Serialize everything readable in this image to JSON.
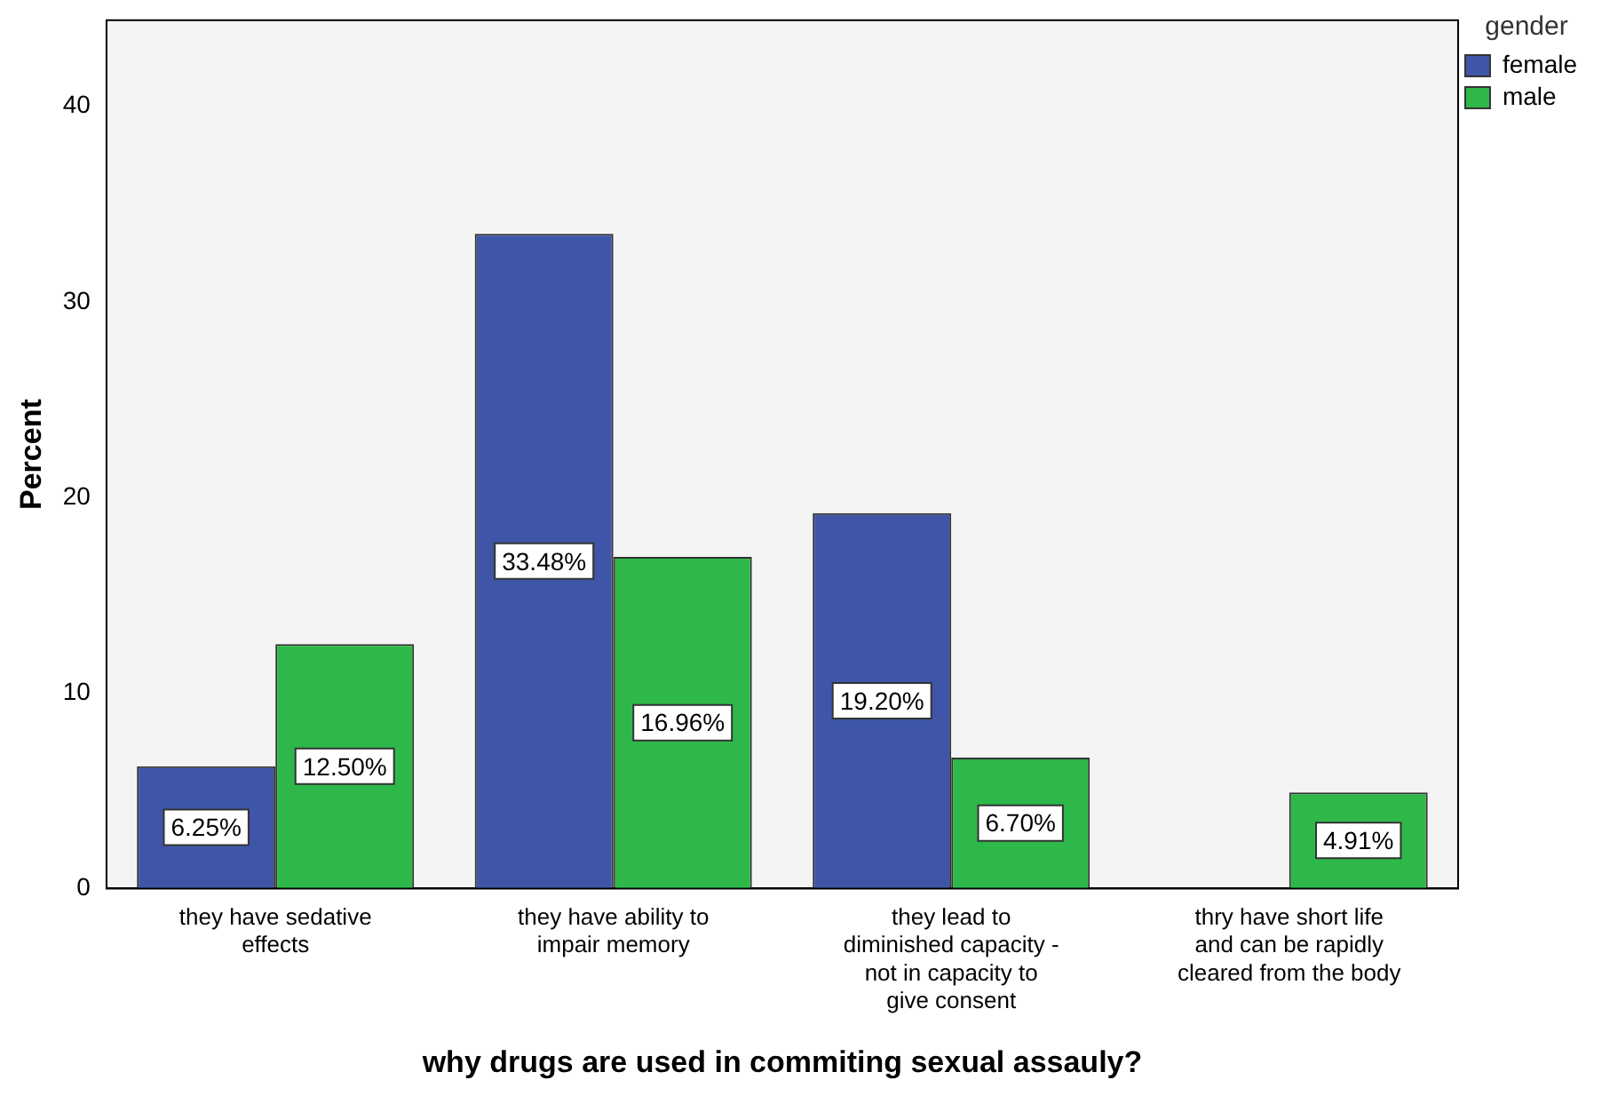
{
  "chart_data": {
    "type": "bar",
    "xlabel": "why drugs are used in commiting sexual assauly?",
    "ylabel": "Percent",
    "legend_title": "gender",
    "legend": "top right",
    "categories": [
      "they have sedative effects",
      "they have ability to impair memory",
      "they lead to diminished capacity - not in capacity to give consent",
      "thry have short life and can be rapidly cleared from the body"
    ],
    "series": [
      {
        "name": "female",
        "color": "#3f56a8",
        "values": [
          6.25,
          33.48,
          19.2,
          null
        ],
        "value_labels": [
          "6.25%",
          "33.48%",
          "19.20%",
          null
        ]
      },
      {
        "name": "male",
        "color": "#2fb84a",
        "values": [
          12.5,
          16.96,
          6.7,
          4.91
        ],
        "value_labels": [
          "12.50%",
          "16.96%",
          "6.70%",
          "4.91%"
        ]
      }
    ],
    "ylim": [
      0,
      44.4
    ],
    "yticks": [
      0,
      10,
      20,
      30,
      40
    ],
    "grid": false
  }
}
